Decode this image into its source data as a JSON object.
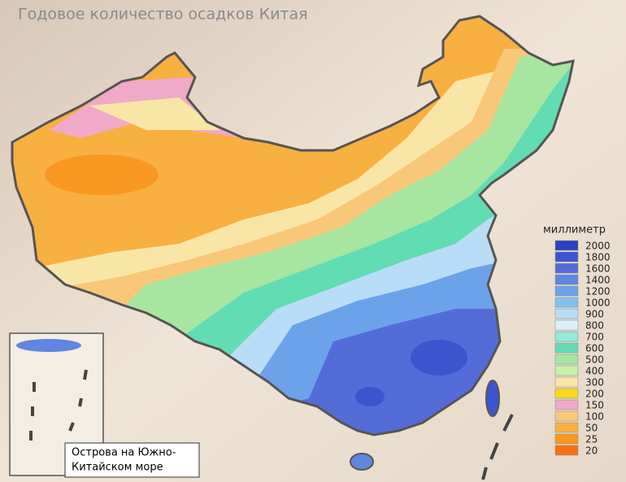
{
  "title": "Годовое количество осадков Китая",
  "legend": {
    "title": "миллиметр",
    "entries": [
      {
        "value": 2000,
        "color": "#2a42bf"
      },
      {
        "value": 1800,
        "color": "#3c55cf"
      },
      {
        "value": 1600,
        "color": "#546cd8"
      },
      {
        "value": 1400,
        "color": "#5f86e0"
      },
      {
        "value": 1200,
        "color": "#6ca2ea"
      },
      {
        "value": 1000,
        "color": "#84bff2"
      },
      {
        "value": 900,
        "color": "#b9ddf6"
      },
      {
        "value": 800,
        "color": "#dcf0fb"
      },
      {
        "value": 700,
        "color": "#93e9da"
      },
      {
        "value": 600,
        "color": "#62dcb2"
      },
      {
        "value": 500,
        "color": "#a6e6a0"
      },
      {
        "value": 400,
        "color": "#c9f0aa"
      },
      {
        "value": 300,
        "color": "#f8e6a6"
      },
      {
        "value": 200,
        "color": "#f8d820"
      },
      {
        "value": 150,
        "color": "#eeaac8"
      },
      {
        "value": 100,
        "color": "#f8c878"
      },
      {
        "value": 50,
        "color": "#f8b040"
      },
      {
        "value": 25,
        "color": "#f89820"
      },
      {
        "value": 20,
        "color": "#f87010"
      }
    ]
  },
  "inset": {
    "lines": [
      "Острова на Южно-",
      "Китайском море"
    ]
  }
}
